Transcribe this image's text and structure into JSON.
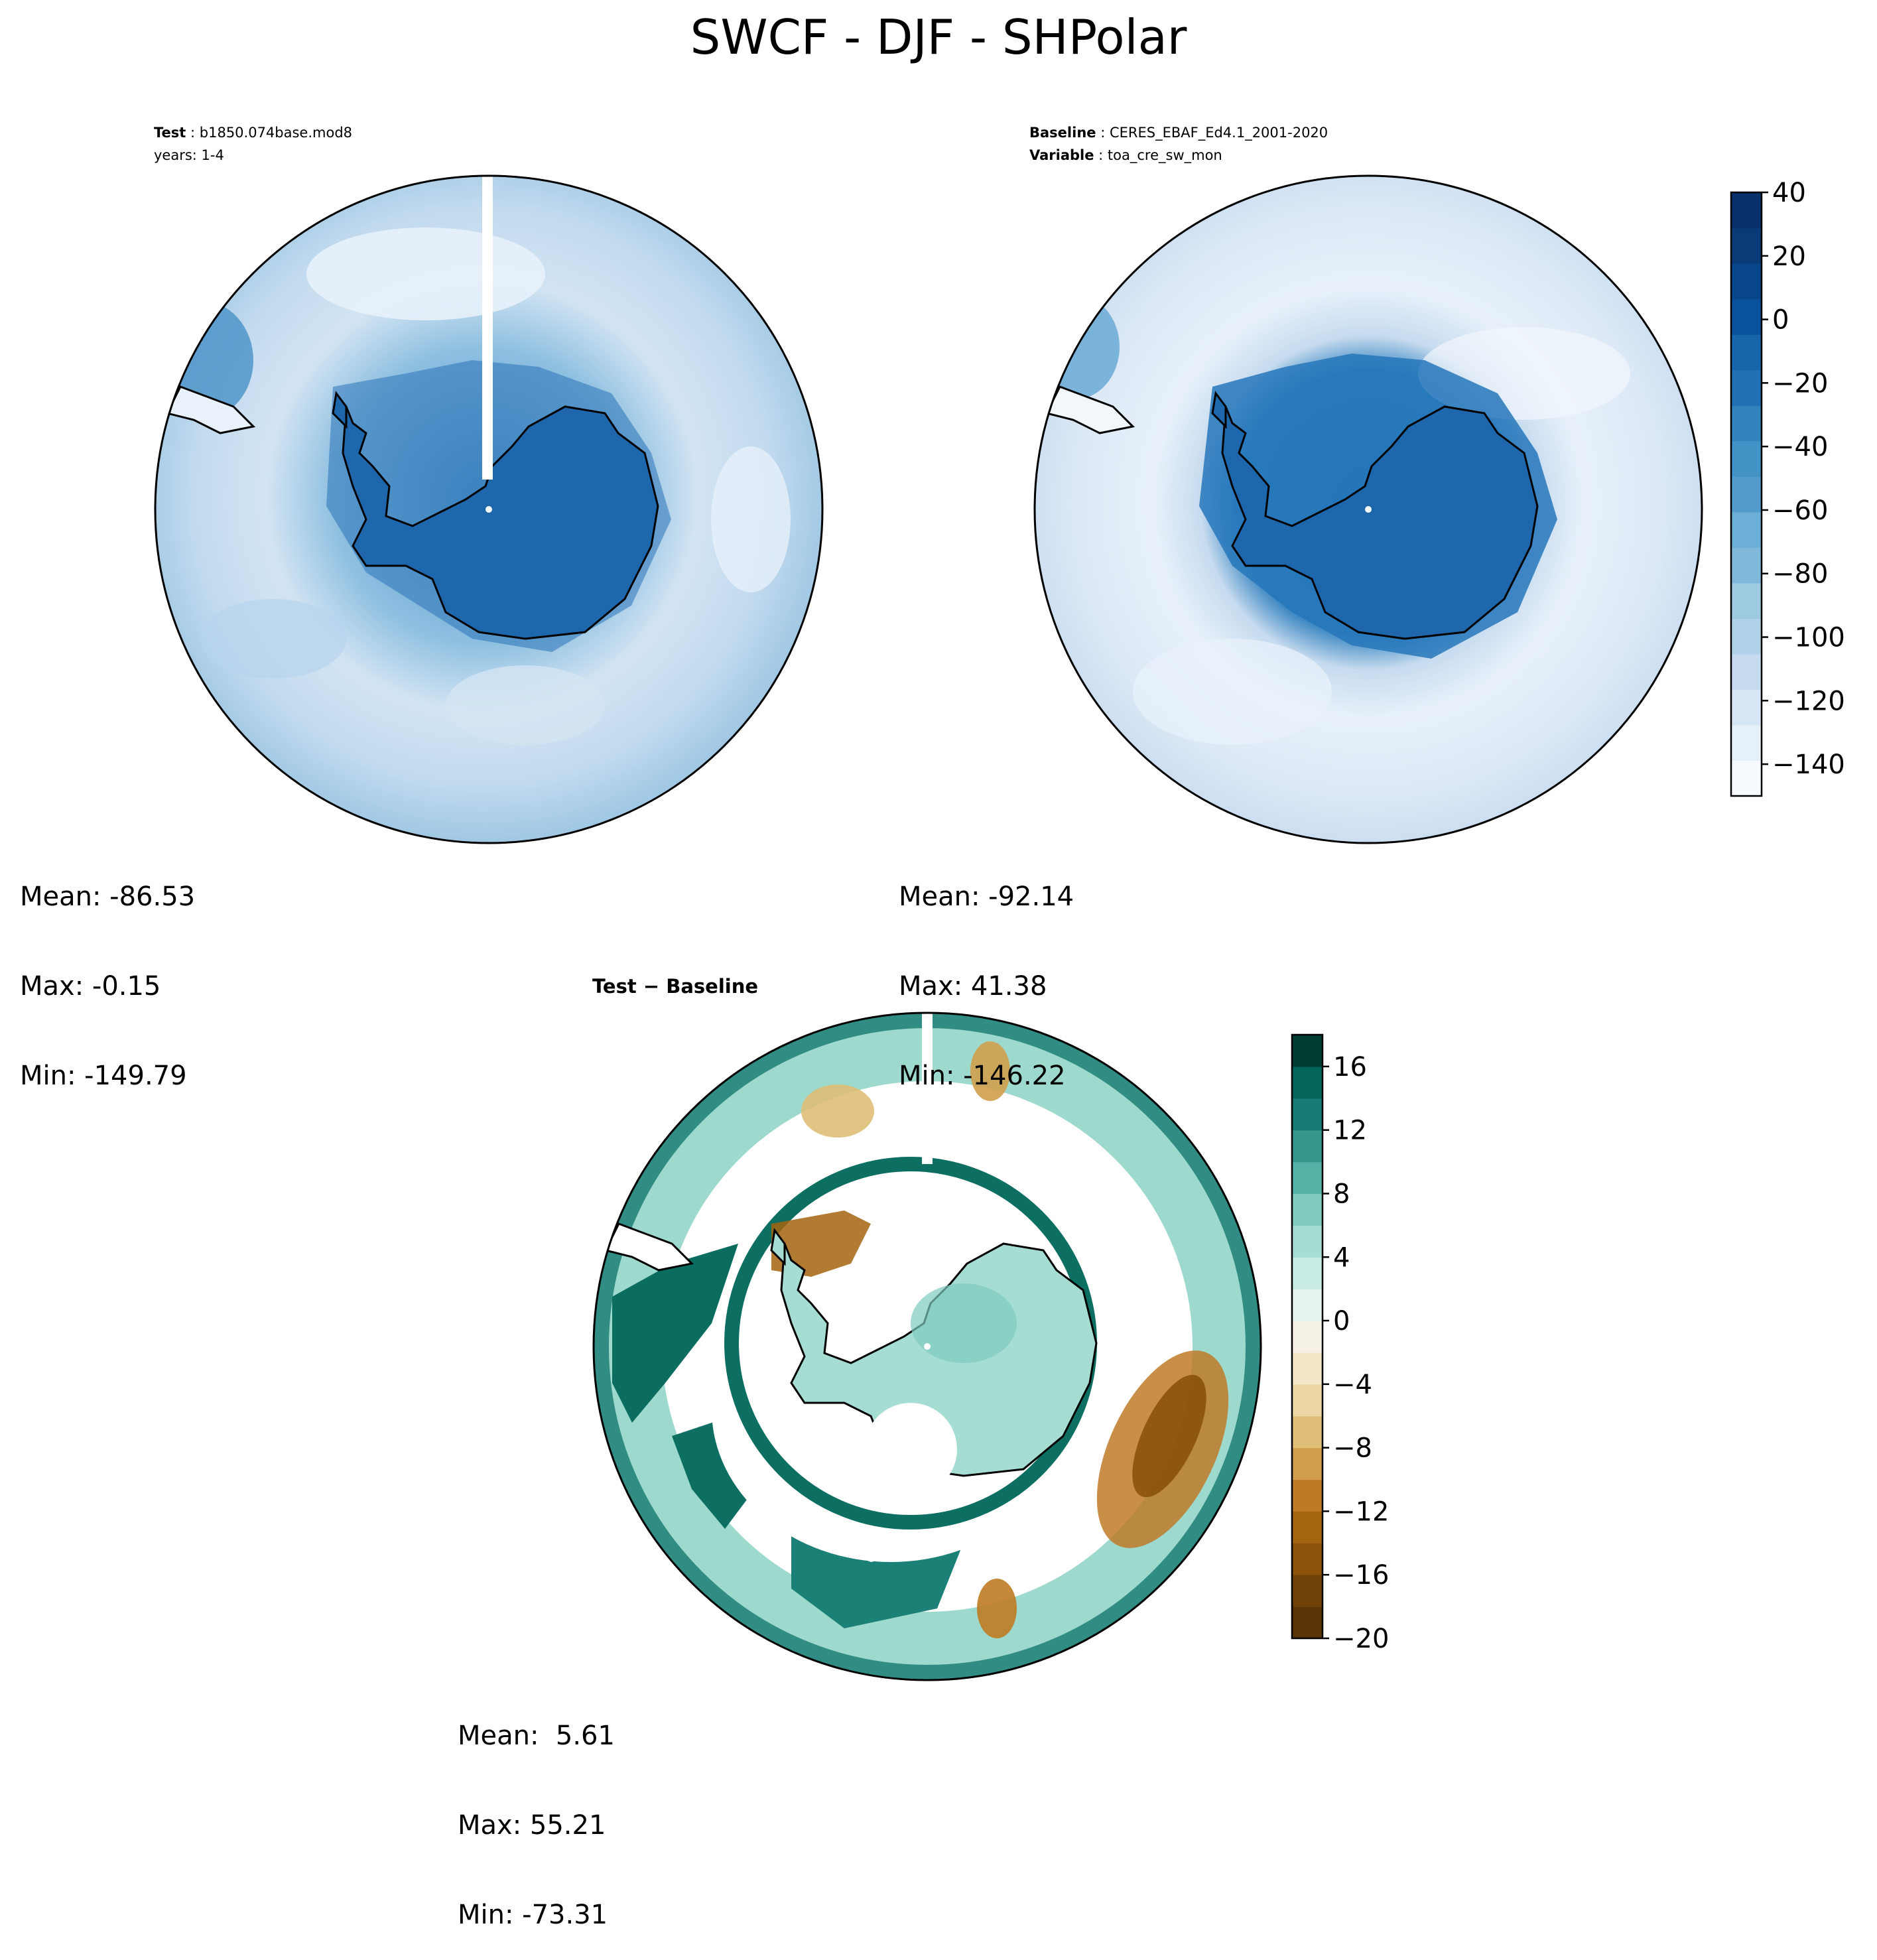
{
  "title": "SWCF - DJF - SHPolar",
  "panels": {
    "test": {
      "caption_label": "Test",
      "caption_value": "b1850.074base.mod8",
      "caption_line2": "years: 1-4",
      "stats": {
        "mean": "Mean: -86.53",
        "max": "Max: -0.15",
        "min": "Min: -149.79"
      }
    },
    "baseline": {
      "caption_label": "Baseline",
      "caption_value": "CERES_EBAF_Ed4.1_2001-2020",
      "caption_label2": "Variable",
      "caption_value2": "toa_cre_sw_mon",
      "stats": {
        "mean": "Mean: -92.14",
        "max": "Max: 41.38",
        "min": "Min: -146.22"
      }
    },
    "diff": {
      "caption_label": "Test − Baseline",
      "stats": {
        "mean": "Mean:  5.61",
        "max": "Max: 55.21",
        "min": "Min: -73.31"
      }
    }
  },
  "chart_data": [
    {
      "type": "heatmap",
      "panel": "Test",
      "projection": "South Polar Stereographic",
      "colormap": "Blues",
      "colorbar": {
        "range": [
          -150,
          40
        ],
        "tick_labels": [
          "40",
          "20",
          "0",
          "−20",
          "−40",
          "−60",
          "−80",
          "−100",
          "−120",
          "−140"
        ],
        "colors": [
          "#f7fbff",
          "#e6f0f9",
          "#d6e6f4",
          "#c6dbef",
          "#b0d2e8",
          "#9ecae1",
          "#7fb8da",
          "#6baed6",
          "#519ccc",
          "#4292c6",
          "#3282be",
          "#2171b5",
          "#1764ab",
          "#08519c",
          "#08468a",
          "#083b78",
          "#08306b"
        ]
      },
      "summary": {
        "mean": -86.53,
        "max": -0.15,
        "min": -149.79
      }
    },
    {
      "type": "heatmap",
      "panel": "Baseline",
      "projection": "South Polar Stereographic",
      "colormap": "Blues",
      "summary": {
        "mean": -92.14,
        "max": 41.38,
        "min": -146.22
      }
    },
    {
      "type": "heatmap",
      "panel": "Test − Baseline",
      "projection": "South Polar Stereographic",
      "colormap": "BrBG",
      "colorbar": {
        "range": [
          -20,
          18
        ],
        "tick_labels": [
          "16",
          "12",
          "8",
          "4",
          "0",
          "−4",
          "−8",
          "−12",
          "−16",
          "−20"
        ],
        "colors": [
          "#5a3404",
          "#6f4107",
          "#8a520a",
          "#a5640f",
          "#bf7b24",
          "#d09e4c",
          "#dfbe77",
          "#ebd6a4",
          "#f4e6c8",
          "#f5f1e4",
          "#e6f3f1",
          "#c9ebe5",
          "#a5ddd4",
          "#7fcbbf",
          "#56b1a6",
          "#34968d",
          "#157b74",
          "#03645a",
          "#003c30"
        ]
      },
      "summary": {
        "mean": 5.61,
        "max": 55.21,
        "min": -73.31
      }
    }
  ]
}
